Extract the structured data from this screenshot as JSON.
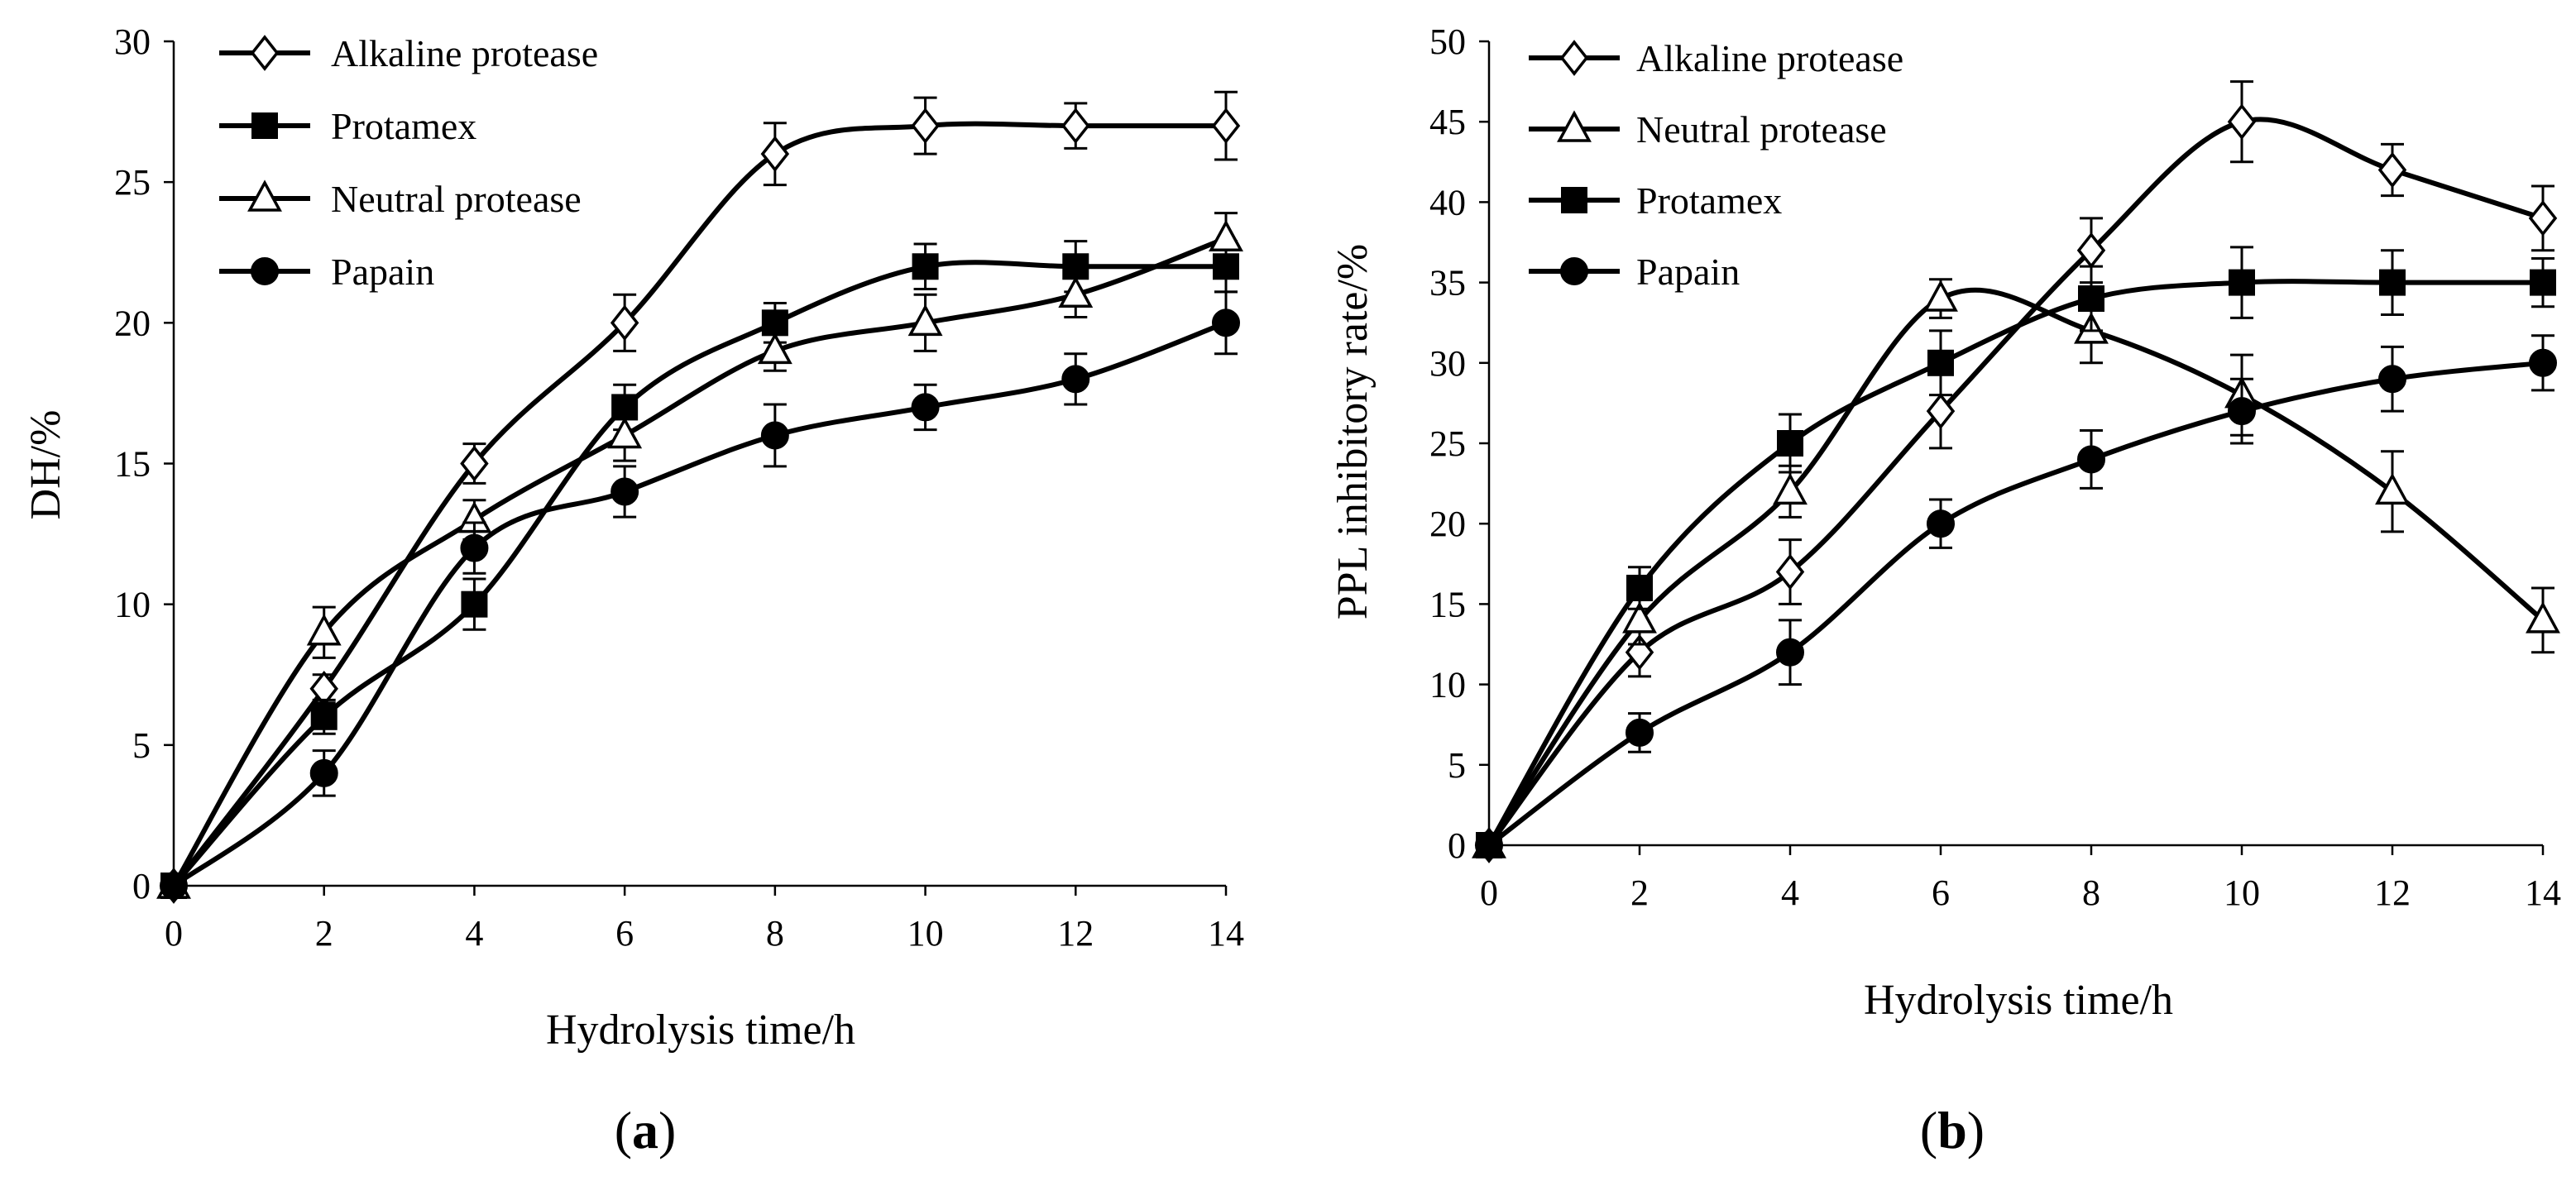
{
  "colors": {
    "line": "#000000",
    "background": "#ffffff",
    "open_marker_fill": "#ffffff"
  },
  "chart_data": [
    {
      "type": "line",
      "panel_label": "(a)",
      "panel_letter": "a",
      "xlabel": "Hydrolysis time/h",
      "ylabel": "DH/%",
      "xlim": [
        0,
        14
      ],
      "ylim": [
        0,
        30
      ],
      "x_ticks": [
        0,
        2,
        4,
        6,
        8,
        10,
        12,
        14
      ],
      "y_ticks": [
        0,
        5,
        10,
        15,
        20,
        25,
        30
      ],
      "legend_position": "top-left",
      "series": [
        {
          "name": "Alkaline protease",
          "marker": "diamond-open",
          "x": [
            0,
            2,
            4,
            6,
            8,
            10,
            12,
            14
          ],
          "values": [
            0,
            7,
            15,
            20,
            26,
            27,
            27,
            27
          ],
          "errors": [
            0,
            0.5,
            0.7,
            1.0,
            1.1,
            1.0,
            0.8,
            1.2
          ]
        },
        {
          "name": "Protamex",
          "marker": "square-filled",
          "x": [
            0,
            2,
            4,
            6,
            8,
            10,
            12,
            14
          ],
          "values": [
            0,
            6,
            10,
            17,
            20,
            22,
            22,
            22
          ],
          "errors": [
            0,
            0.6,
            0.9,
            0.8,
            0.7,
            0.8,
            0.9,
            0.9
          ]
        },
        {
          "name": "Neutral protease",
          "marker": "triangle-open",
          "x": [
            0,
            2,
            4,
            6,
            8,
            10,
            12,
            14
          ],
          "values": [
            0,
            9,
            13,
            16,
            19,
            20,
            21,
            23
          ],
          "errors": [
            0,
            0.9,
            0.7,
            0.9,
            0.7,
            1.0,
            0.8,
            0.9
          ]
        },
        {
          "name": "Papain",
          "marker": "circle-filled",
          "x": [
            0,
            2,
            4,
            6,
            8,
            10,
            12,
            14
          ],
          "values": [
            0,
            4,
            12,
            14,
            16,
            17,
            18,
            20
          ],
          "errors": [
            0,
            0.8,
            0.9,
            0.9,
            1.1,
            0.8,
            0.9,
            1.1
          ]
        }
      ]
    },
    {
      "type": "line",
      "panel_label": "(b)",
      "panel_letter": "b",
      "xlabel": "Hydrolysis time/h",
      "ylabel": "PPL inhibitory rate/%",
      "xlim": [
        0,
        14
      ],
      "ylim": [
        0,
        50
      ],
      "x_ticks": [
        0,
        2,
        4,
        6,
        8,
        10,
        12,
        14
      ],
      "y_ticks": [
        0,
        5,
        10,
        15,
        20,
        25,
        30,
        35,
        40,
        45,
        50
      ],
      "legend_position": "top-left",
      "series": [
        {
          "name": "Alkaline protease",
          "marker": "diamond-open",
          "x": [
            0,
            2,
            4,
            6,
            8,
            10,
            12,
            14
          ],
          "values": [
            0,
            12,
            17,
            27,
            37,
            45,
            42,
            39
          ],
          "errors": [
            0,
            1.5,
            2.0,
            2.3,
            2.0,
            2.5,
            1.6,
            2.0
          ]
        },
        {
          "name": "Neutral protease",
          "marker": "triangle-open",
          "x": [
            0,
            2,
            4,
            6,
            8,
            10,
            12,
            14
          ],
          "values": [
            0,
            14,
            22,
            34,
            32,
            28,
            22,
            14
          ],
          "errors": [
            0,
            1.5,
            1.6,
            1.2,
            2.0,
            2.5,
            2.5,
            2.0
          ]
        },
        {
          "name": "Protamex",
          "marker": "square-filled",
          "x": [
            0,
            2,
            4,
            6,
            8,
            10,
            12,
            14
          ],
          "values": [
            0,
            16,
            25,
            30,
            34,
            35,
            35,
            35
          ],
          "errors": [
            0,
            1.3,
            1.8,
            2.0,
            2.0,
            2.2,
            2.0,
            1.5
          ]
        },
        {
          "name": "Papain",
          "marker": "circle-filled",
          "x": [
            0,
            2,
            4,
            6,
            8,
            10,
            12,
            14
          ],
          "values": [
            0,
            7,
            12,
            20,
            24,
            27,
            29,
            30
          ],
          "errors": [
            0,
            1.2,
            2.0,
            1.5,
            1.8,
            2.0,
            2.0,
            1.7
          ]
        }
      ]
    }
  ]
}
